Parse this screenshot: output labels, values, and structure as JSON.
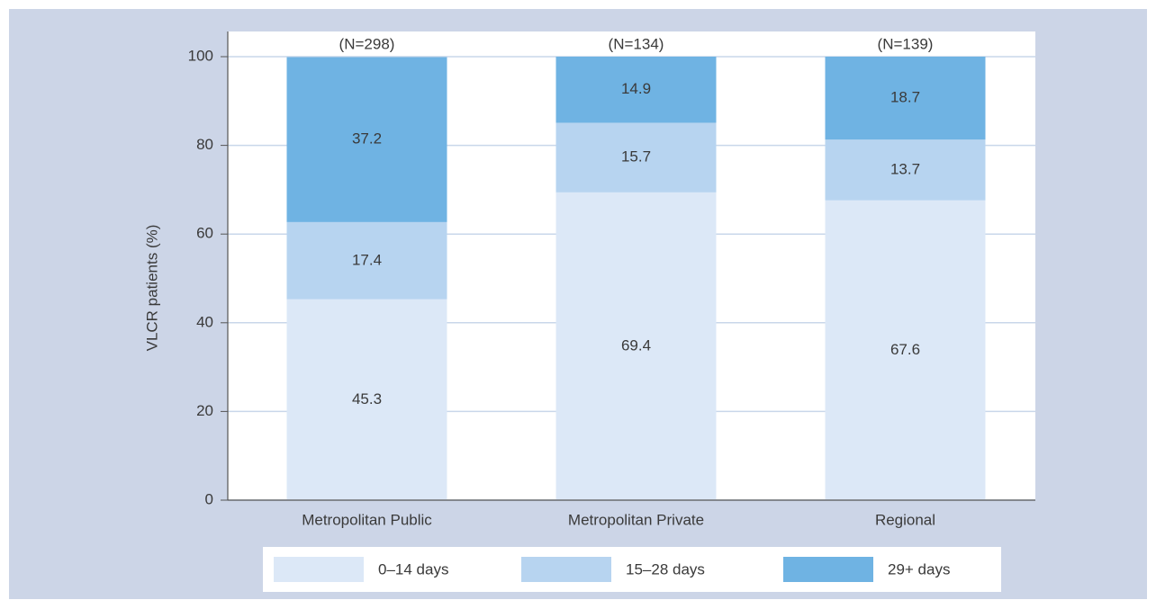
{
  "chart_data": {
    "type": "stacked_bar",
    "y_label": "VLCR patients (%)",
    "categories": [
      "Metropolitan Public",
      "Metropolitan Private",
      "Regional"
    ],
    "bar_annotations": [
      "(N=298)",
      "(N=134)",
      "(N=139)"
    ],
    "series": [
      {
        "name": "0–14 days",
        "color": "#dce8f7",
        "values": [
          45.3,
          69.4,
          67.6
        ]
      },
      {
        "name": "15–28 days",
        "color": "#b7d4f0",
        "values": [
          17.4,
          15.7,
          13.7
        ]
      },
      {
        "name": "29+ days",
        "color": "#6fb3e3",
        "values": [
          37.2,
          14.9,
          18.7
        ]
      }
    ],
    "ylim": [
      0,
      100
    ],
    "yticks": [
      0,
      20,
      40,
      60,
      80,
      100
    ],
    "grid": true
  }
}
